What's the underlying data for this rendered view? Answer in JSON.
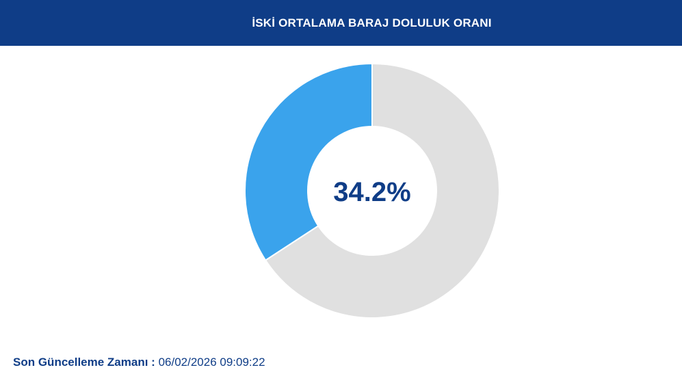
{
  "header": {
    "title": "İSKİ ORTALAMA BARAJ DOLULUK ORANI"
  },
  "chart_data": {
    "type": "pie",
    "center_text": "34.2%",
    "slices": [
      {
        "label": "",
        "value": 34.2,
        "color": "#3aa3ec"
      },
      {
        "label": "",
        "value": 65.8,
        "color": "#e0e0e0"
      }
    ],
    "title": ""
  },
  "footer": {
    "label": "Son Güncelleme Zamanı :",
    "value": "06/02/2026 09:09:22"
  },
  "colors": {
    "header_bg": "#0f3d87",
    "accent": "#3aa3ec",
    "remaining": "#e0e0e0",
    "text_dark_blue": "#0f3d87"
  }
}
